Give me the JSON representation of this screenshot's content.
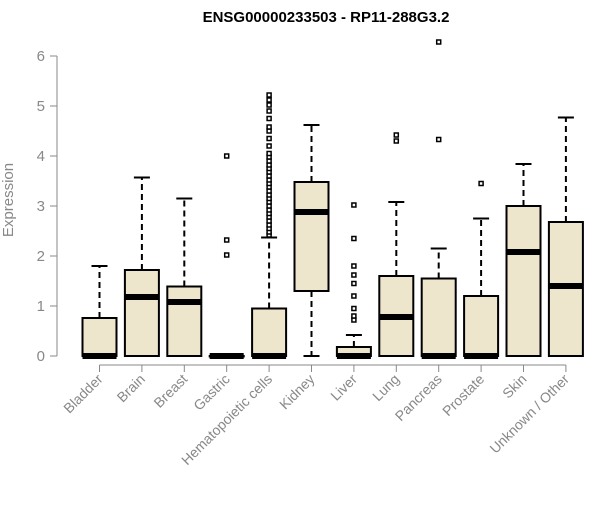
{
  "chart_data": {
    "type": "boxplot",
    "title": "ENSG00000233503 - RP11-288G3.2",
    "xlabel": "",
    "ylabel": "Expression",
    "ylim": [
      0,
      6
    ],
    "yticks": [
      0,
      1,
      2,
      3,
      4,
      5,
      6
    ],
    "grid": false,
    "box_fill": "#ede6cc",
    "box_stroke": "#000000",
    "axis_color": "#888888",
    "categories": [
      "Bladder",
      "Brain",
      "Breast",
      "Gastric",
      "Hematopoietic cells",
      "Kidney",
      "Liver",
      "Lung",
      "Pancreas",
      "Prostate",
      "Skin",
      "Unknown / Other"
    ],
    "boxes": [
      {
        "category": "Bladder",
        "whisker_low": 0,
        "q1": 0,
        "median": 0,
        "q3": 0.76,
        "whisker_high": 1.8,
        "outliers": []
      },
      {
        "category": "Brain",
        "whisker_low": 0,
        "q1": 0,
        "median": 1.18,
        "q3": 1.72,
        "whisker_high": 3.57,
        "outliers": []
      },
      {
        "category": "Breast",
        "whisker_low": 0,
        "q1": 0,
        "median": 1.08,
        "q3": 1.39,
        "whisker_high": 3.15,
        "outliers": []
      },
      {
        "category": "Gastric",
        "whisker_low": 0,
        "q1": 0,
        "median": 0,
        "q3": 0,
        "whisker_high": 0,
        "outliers": [
          2.02,
          2.32,
          4.0
        ]
      },
      {
        "category": "Hematopoietic cells",
        "whisker_low": 0,
        "q1": 0,
        "median": 0,
        "q3": 0.95,
        "whisker_high": 2.37,
        "outliers": [
          2.42,
          2.48,
          2.55,
          2.62,
          2.7,
          2.78,
          2.85,
          2.92,
          3.0,
          3.08,
          3.15,
          3.22,
          3.3,
          3.38,
          3.45,
          3.52,
          3.6,
          3.68,
          3.75,
          3.82,
          3.9,
          3.98,
          4.05,
          4.2,
          4.35,
          4.5,
          4.58,
          4.75,
          4.9,
          5.02,
          5.12,
          5.22
        ]
      },
      {
        "category": "Kidney",
        "whisker_low": 0,
        "q1": 1.3,
        "median": 2.88,
        "q3": 3.48,
        "whisker_high": 4.62,
        "outliers": []
      },
      {
        "category": "Liver",
        "whisker_low": 0,
        "q1": 0,
        "median": 0,
        "q3": 0.18,
        "whisker_high": 0.42,
        "outliers": [
          0.72,
          0.8,
          0.95,
          1.2,
          1.45,
          1.62,
          1.8,
          2.35,
          3.02
        ]
      },
      {
        "category": "Lung",
        "whisker_low": 0,
        "q1": 0,
        "median": 0.78,
        "q3": 1.6,
        "whisker_high": 3.08,
        "outliers": [
          4.3,
          4.42
        ]
      },
      {
        "category": "Pancreas",
        "whisker_low": 0,
        "q1": 0,
        "median": 0,
        "q3": 1.55,
        "whisker_high": 2.15,
        "outliers": [
          4.33,
          6.28
        ]
      },
      {
        "category": "Prostate",
        "whisker_low": 0,
        "q1": 0,
        "median": 0,
        "q3": 1.2,
        "whisker_high": 2.75,
        "outliers": [
          3.45
        ]
      },
      {
        "category": "Skin",
        "whisker_low": 0,
        "q1": 0,
        "median": 2.08,
        "q3": 3.0,
        "whisker_high": 3.84,
        "outliers": []
      },
      {
        "category": "Unknown / Other",
        "whisker_low": 0,
        "q1": 0,
        "median": 1.4,
        "q3": 2.68,
        "whisker_high": 4.77,
        "outliers": []
      }
    ]
  }
}
